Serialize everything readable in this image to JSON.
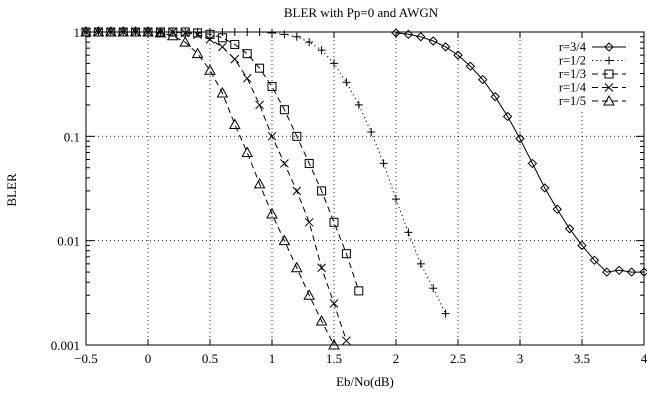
{
  "chart_data": {
    "type": "line",
    "title": "BLER with Pp=0 and AWGN",
    "xlabel": "Eb/No(dB)",
    "ylabel": "BLER",
    "xlim": [
      -0.5,
      4
    ],
    "ylim": [
      0.001,
      1
    ],
    "yscale": "log",
    "grid": true,
    "legend_position": "top-right",
    "x_ticks": [
      "-0.5",
      "0",
      "0.5",
      "1",
      "1.5",
      "2",
      "2.5",
      "3",
      "3.5",
      "4"
    ],
    "y_ticks": [
      "0.001",
      "0.01",
      "0.1",
      "1"
    ],
    "series": [
      {
        "name": "r=3/4",
        "marker": "diamond",
        "line": "solid",
        "x": [
          2.0,
          2.1,
          2.2,
          2.3,
          2.4,
          2.5,
          2.6,
          2.7,
          2.8,
          2.9,
          3.0,
          3.1,
          3.2,
          3.3,
          3.4,
          3.5,
          3.6,
          3.7,
          3.8,
          3.9,
          4.0
        ],
        "y": [
          0.98,
          0.95,
          0.9,
          0.82,
          0.72,
          0.6,
          0.47,
          0.35,
          0.24,
          0.155,
          0.095,
          0.055,
          0.032,
          0.02,
          0.013,
          0.009,
          0.0065,
          0.005,
          0.0052,
          0.005,
          0.005
        ]
      },
      {
        "name": "r=1/2",
        "marker": "plus",
        "line": "dotted",
        "x": [
          -0.5,
          -0.4,
          -0.3,
          -0.2,
          -0.1,
          0.0,
          0.1,
          0.2,
          0.3,
          0.4,
          0.5,
          0.6,
          0.7,
          0.8,
          0.9,
          1.0,
          1.1,
          1.2,
          1.3,
          1.4,
          1.5,
          1.6,
          1.7,
          1.8,
          1.9,
          2.0,
          2.1,
          2.2,
          2.3,
          2.4
        ],
        "y": [
          1,
          1,
          1,
          1,
          1,
          1,
          1,
          1,
          1,
          1,
          1,
          1,
          1,
          1,
          1,
          0.98,
          0.95,
          0.9,
          0.8,
          0.67,
          0.5,
          0.33,
          0.2,
          0.11,
          0.055,
          0.025,
          0.012,
          0.006,
          0.0035,
          0.002
        ]
      },
      {
        "name": "r=1/3",
        "marker": "square",
        "line": "dashed",
        "x": [
          -0.5,
          -0.4,
          -0.3,
          -0.2,
          -0.1,
          0.0,
          0.1,
          0.2,
          0.3,
          0.4,
          0.5,
          0.6,
          0.7,
          0.8,
          0.9,
          1.0,
          1.1,
          1.2,
          1.3,
          1.4,
          1.5,
          1.6,
          1.7
        ],
        "y": [
          1,
          1,
          1,
          1,
          1,
          1,
          1,
          1,
          1,
          0.98,
          0.95,
          0.88,
          0.76,
          0.62,
          0.45,
          0.3,
          0.18,
          0.1,
          0.055,
          0.03,
          0.015,
          0.0075,
          0.0033
        ]
      },
      {
        "name": "r=1/4",
        "marker": "cross",
        "line": "dashed",
        "x": [
          -0.5,
          -0.4,
          -0.3,
          -0.2,
          -0.1,
          0.0,
          0.1,
          0.2,
          0.3,
          0.4,
          0.5,
          0.6,
          0.7,
          0.8,
          0.9,
          1.0,
          1.1,
          1.2,
          1.3,
          1.4,
          1.5,
          1.6
        ],
        "y": [
          1,
          1,
          1,
          1,
          1,
          1,
          1,
          1,
          0.98,
          0.94,
          0.85,
          0.72,
          0.55,
          0.36,
          0.2,
          0.1,
          0.055,
          0.03,
          0.015,
          0.0055,
          0.0025,
          0.0011
        ]
      },
      {
        "name": "r=1/5",
        "marker": "triangle",
        "line": "dashed",
        "x": [
          -0.5,
          -0.4,
          -0.3,
          -0.2,
          -0.1,
          0.0,
          0.1,
          0.2,
          0.3,
          0.4,
          0.5,
          0.6,
          0.7,
          0.8,
          0.9,
          1.0,
          1.1,
          1.2,
          1.3,
          1.4,
          1.5
        ],
        "y": [
          1,
          1,
          1,
          1,
          1,
          1,
          0.98,
          0.92,
          0.8,
          0.62,
          0.43,
          0.26,
          0.13,
          0.07,
          0.035,
          0.018,
          0.01,
          0.0055,
          0.003,
          0.0017,
          0.001
        ]
      }
    ]
  }
}
